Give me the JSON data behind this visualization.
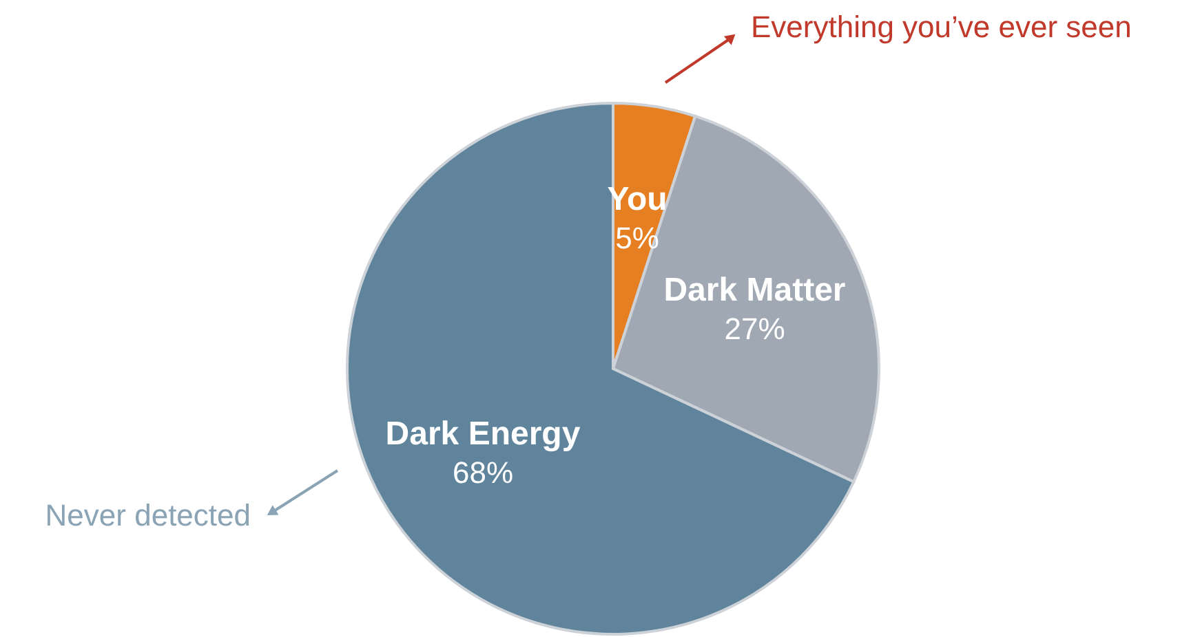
{
  "chart_data": {
    "type": "pie",
    "categories": [
      "You",
      "Dark Matter",
      "Dark Energy"
    ],
    "values": [
      5,
      27,
      68
    ],
    "colors": [
      "#e67e22",
      "#a0a8b4",
      "#5f849c"
    ],
    "value_labels": [
      "5%",
      "27%",
      "68%"
    ],
    "annotations": [
      "Everything you’ve ever seen",
      "Never detected"
    ]
  }
}
